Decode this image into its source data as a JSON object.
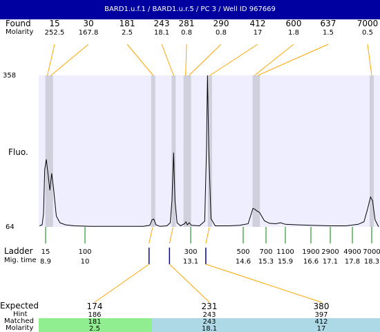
{
  "title": "BARD1.u.f.1 / BARD1.u.r.5 / PC 3 / Well ID 967669",
  "labels": {
    "found": "Found",
    "molarity": "Molarity",
    "fluo": "Fluo.",
    "ladder": "Ladder",
    "mig_time": "Mig. time",
    "expected": "Expected",
    "hint": "Hint",
    "matched": "Matched",
    "molarity_bottom": "Molarity"
  },
  "colors": {
    "title_bar": "#0000a0",
    "plot_background": "#eeeeff",
    "found_marker": "#d0d0dc",
    "found_connector": "#ffa500",
    "ladder_connector": "#008000",
    "expected_connector": "#0000c0",
    "matched_ok": "#90ee90",
    "matched_other": "#add8e6"
  },
  "chart_data": {
    "type": "line",
    "ylabel": "Fluo.",
    "ylim": [
      64,
      358
    ],
    "y_ticks": [
      "358",
      "64"
    ],
    "found": [
      {
        "size": "15",
        "molarity": "252.5",
        "time": 8.95
      },
      {
        "size": "30",
        "molarity": "167.8",
        "time": 9.05
      },
      {
        "size": "181",
        "molarity": "2.5",
        "time": 12.0
      },
      {
        "size": "243",
        "molarity": "18.1",
        "time": 12.6
      },
      {
        "size": "281",
        "molarity": "0.8",
        "time": 12.95
      },
      {
        "size": "290",
        "molarity": "0.8",
        "time": 13.05
      },
      {
        "size": "412",
        "molarity": "17",
        "time": 13.65
      },
      {
        "size": "600",
        "molarity": "1.8",
        "time": 14.95
      },
      {
        "size": "637",
        "molarity": "1.5",
        "time": 15.05
      },
      {
        "size": "7000",
        "molarity": "0.5",
        "time": 18.3
      }
    ],
    "ladder": [
      {
        "size": "15",
        "time": "8.9"
      },
      {
        "size": "100",
        "time": "10"
      },
      {
        "size": "300",
        "time": "13.1"
      },
      {
        "size": "500",
        "time": "14.6"
      },
      {
        "size": "700",
        "time": "15.3"
      },
      {
        "size": "1100",
        "time": "15.9"
      },
      {
        "size": "1900",
        "time": "16.6"
      },
      {
        "size": "2900",
        "time": "17.1"
      },
      {
        "size": "4900",
        "time": "17.8"
      },
      {
        "size": "7000",
        "time": "18.3"
      }
    ],
    "expected": [
      {
        "expected": "174",
        "hint": "186",
        "matched": "181",
        "molarity": "2.5",
        "time": 12.0
      },
      {
        "expected": "231",
        "hint": "243",
        "matched": "243",
        "molarity": "18.1",
        "time": 12.6
      },
      {
        "expected": "380",
        "hint": "397",
        "matched": "412",
        "molarity": "17",
        "time": 13.65
      }
    ],
    "trace": [
      [
        8.55,
        66
      ],
      [
        8.7,
        68
      ],
      [
        8.78,
        90
      ],
      [
        8.85,
        175
      ],
      [
        8.92,
        195
      ],
      [
        8.98,
        160
      ],
      [
        9.02,
        135
      ],
      [
        9.07,
        168
      ],
      [
        9.12,
        140
      ],
      [
        9.2,
        85
      ],
      [
        9.3,
        72
      ],
      [
        9.45,
        68
      ],
      [
        9.7,
        66
      ],
      [
        10.2,
        65
      ],
      [
        11.0,
        65
      ],
      [
        11.7,
        65
      ],
      [
        11.9,
        67
      ],
      [
        11.97,
        78
      ],
      [
        12.02,
        79
      ],
      [
        12.08,
        68
      ],
      [
        12.2,
        65
      ],
      [
        12.4,
        66
      ],
      [
        12.5,
        72
      ],
      [
        12.55,
        115
      ],
      [
        12.6,
        208
      ],
      [
        12.64,
        115
      ],
      [
        12.7,
        72
      ],
      [
        12.8,
        66
      ],
      [
        12.92,
        70
      ],
      [
        12.96,
        74
      ],
      [
        13.0,
        68
      ],
      [
        13.06,
        72
      ],
      [
        13.12,
        67
      ],
      [
        13.35,
        66
      ],
      [
        13.5,
        75
      ],
      [
        13.55,
        210
      ],
      [
        13.58,
        358
      ],
      [
        13.62,
        210
      ],
      [
        13.68,
        80
      ],
      [
        13.8,
        66
      ],
      [
        14.2,
        66
      ],
      [
        14.5,
        67
      ],
      [
        14.75,
        70
      ],
      [
        14.9,
        100
      ],
      [
        14.96,
        98
      ],
      [
        15.02,
        95
      ],
      [
        15.1,
        92
      ],
      [
        15.25,
        76
      ],
      [
        15.4,
        71
      ],
      [
        15.6,
        70
      ],
      [
        15.75,
        72
      ],
      [
        15.9,
        69
      ],
      [
        16.2,
        68
      ],
      [
        16.6,
        67
      ],
      [
        17.1,
        66
      ],
      [
        17.6,
        66
      ],
      [
        17.95,
        69
      ],
      [
        18.1,
        74
      ],
      [
        18.18,
        95
      ],
      [
        18.27,
        122
      ],
      [
        18.33,
        115
      ],
      [
        18.42,
        78
      ],
      [
        18.55,
        64
      ]
    ]
  }
}
